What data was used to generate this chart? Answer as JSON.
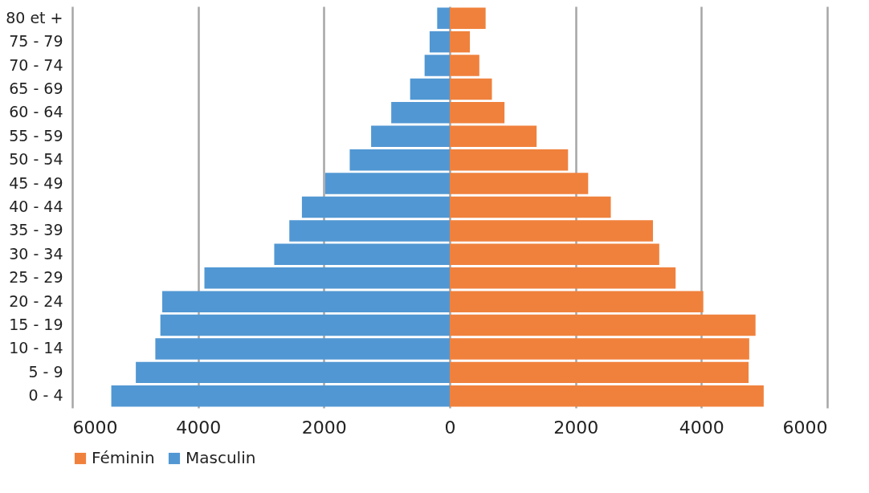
{
  "chart_data": {
    "type": "bar",
    "orientation": "horizontal",
    "categories": [
      "80 et +",
      "75 - 79",
      "70 - 74",
      "65 - 69",
      "60 - 64",
      "55 - 59",
      "50 - 54",
      "45 - 49",
      "40 - 44",
      "35 - 39",
      "30 - 34",
      "25 - 29",
      "20 - 24",
      "15 - 19",
      "10 - 14",
      "5 - 9",
      "0 - 4"
    ],
    "series": [
      {
        "name": "Féminin",
        "color": "#f0813c",
        "values": [
          570,
          320,
          470,
          670,
          870,
          1380,
          1880,
          2200,
          2560,
          3230,
          3330,
          3590,
          4030,
          4860,
          4760,
          4750,
          4990
        ]
      },
      {
        "name": "Masculin",
        "color": "#5197d3",
        "values": [
          -200,
          -320,
          -400,
          -630,
          -930,
          -1250,
          -1590,
          -1980,
          -2350,
          -2550,
          -2790,
          -3900,
          -4570,
          -4600,
          -4680,
          -4990,
          -5380
        ]
      }
    ],
    "xlim": [
      -6000,
      6000
    ],
    "xticks": [
      {
        "value": -6000,
        "label": "6000"
      },
      {
        "value": -4000,
        "label": "4000"
      },
      {
        "value": -2000,
        "label": "2000"
      },
      0,
      2000,
      4000,
      6000
    ],
    "stacked": true,
    "grid": "x",
    "legend": "bottom"
  }
}
